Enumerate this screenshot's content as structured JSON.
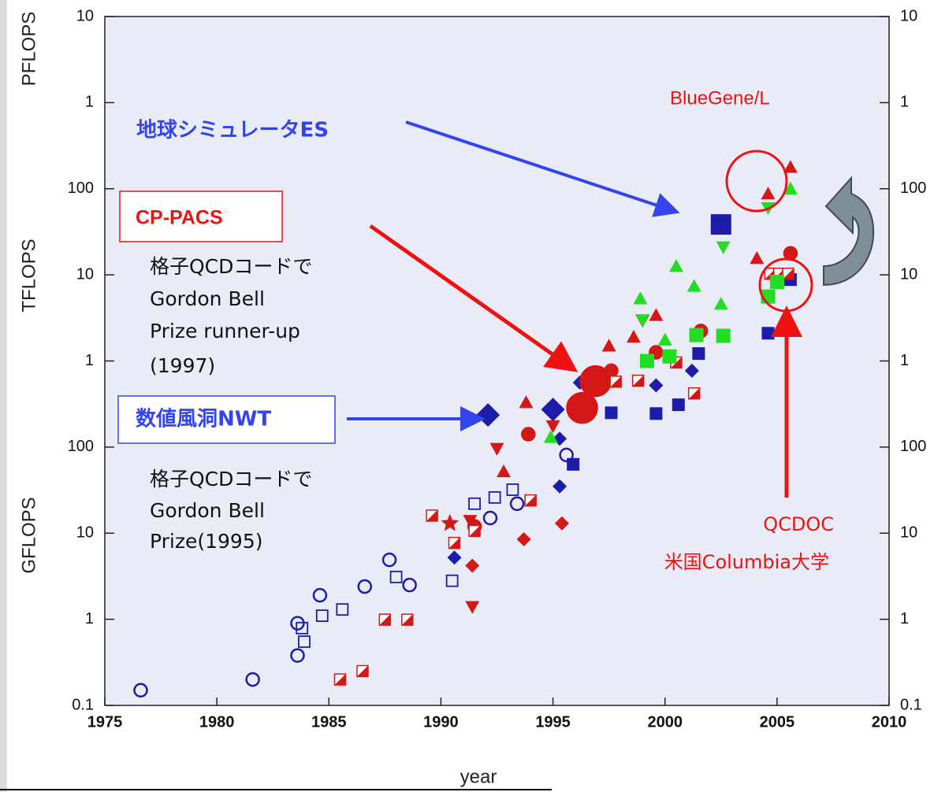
{
  "chart_data": {
    "type": "scatter",
    "log_y": true,
    "mirror_y_labels": true,
    "xlabel": "year",
    "y_unit_labels": [
      "PFLOPS",
      "TFLOPS",
      "GFLOPS"
    ],
    "xlim": [
      1975,
      2010
    ],
    "xticks": [
      1975,
      1980,
      1985,
      1990,
      1995,
      2000,
      2005,
      2010
    ],
    "ylim": [
      0.1,
      10000000
    ],
    "yticks": [
      0.1,
      1,
      10,
      100,
      {
        "value": 1000,
        "label": "1"
      },
      {
        "value": 10000,
        "label": "10"
      },
      {
        "value": 100000,
        "label": "100"
      },
      {
        "value": 1000000,
        "label": "1"
      },
      {
        "value": 10000000,
        "label": "10"
      }
    ],
    "annotations": [
      "地球シミュレータES",
      "BlueGene/L",
      "CP-PACS",
      [
        "格子QCDコードで",
        "Gordon Bell",
        "Prize runner-up",
        "(1997)"
      ],
      "数値風洞NWT",
      [
        "格子QCDコードで",
        "Gordon Bell",
        "Prize(1995)"
      ],
      [
        "QCDOC",
        "米国Columbia大学"
      ]
    ],
    "series": [
      {
        "color": "#1c1ca8",
        "marker": "circle",
        "filled": false,
        "size": 8,
        "x": [
          1976.6,
          1981.6,
          1983.6,
          1983.6,
          1984.6,
          1986.6,
          1987.7,
          1988.6,
          1992.2,
          1993.4,
          1995.6
        ],
        "values": [
          0.15,
          0.2,
          0.38,
          0.9,
          1.9,
          2.4,
          4.9,
          2.5,
          15,
          22,
          81
        ]
      },
      {
        "color": "#1c1ca8",
        "marker": "square",
        "filled": false,
        "size": 7,
        "x": [
          1983.8,
          1983.9,
          1984.7,
          1985.6,
          1988.0,
          1990.5,
          1991.5,
          1992.4,
          1993.2
        ],
        "values": [
          0.79,
          0.55,
          1.1,
          1.3,
          3.1,
          2.8,
          22,
          26,
          32
        ]
      },
      {
        "color": "#1c1ca8",
        "marker": "diamond",
        "filled": true,
        "size": 9,
        "x": [
          1990.6,
          1995.3,
          1995.3,
          1996.2,
          1999.6,
          2001.2
        ],
        "values": [
          5.2,
          35,
          125,
          560,
          520,
          770
        ]
      },
      {
        "color": "#1c1ca8",
        "marker": "diamond",
        "filled": true,
        "size": 15,
        "x": [
          1992.1,
          1995.0
        ],
        "values": [
          236,
          273
        ]
      },
      {
        "color": "#1c1ca8",
        "marker": "square",
        "filled": true,
        "size": 8,
        "x": [
          1995.9,
          1997.6,
          1999.6,
          2000.6,
          2001.5,
          2004.6,
          2005.6
        ],
        "values": [
          63,
          250,
          245,
          310,
          1220,
          2100,
          8800
        ]
      },
      {
        "color": "#1c1ca8",
        "marker": "square",
        "filled": true,
        "size": 13,
        "x": [
          2002.5
        ],
        "values": [
          38500
        ]
      },
      {
        "color": "#d41818",
        "marker": "circle",
        "filled": true,
        "size": 19,
        "x": [
          1996.3,
          1996.9
        ],
        "values": [
          285,
          583
        ]
      },
      {
        "color": "#d41818",
        "marker": "circle",
        "filled": true,
        "size": 8,
        "x": [
          1991.5,
          1993.9,
          1997.6,
          1999.6,
          2001.6,
          2005.6
        ],
        "values": [
          12,
          141,
          770,
          1260,
          2230,
          17800
        ]
      },
      {
        "color": "#d41818",
        "marker": "tri_up",
        "filled": true,
        "size": 9,
        "x": [
          1992.8,
          1993.8,
          1997.5,
          1998.6,
          1999.6,
          2004.1,
          2004.6,
          2005.6
        ],
        "values": [
          52,
          330,
          1500,
          1900,
          3400,
          15600,
          87500,
          178000
        ]
      },
      {
        "color": "#d41818",
        "marker": "tri_down",
        "filled": true,
        "size": 9,
        "x": [
          1991.4,
          1991.3,
          1992.5,
          1995.0,
          1999.0
        ],
        "values": [
          1.4,
          14,
          96,
          176,
          2950
        ]
      },
      {
        "color": "#d41818",
        "marker": "diamond",
        "filled": true,
        "size": 9,
        "x": [
          1991.4,
          1993.7,
          1995.4
        ],
        "values": [
          4.2,
          8.5,
          13
        ]
      },
      {
        "color": "#d41818",
        "marker": "star",
        "filled": true,
        "size": 12,
        "x": [
          1990.4
        ],
        "values": [
          13
        ]
      },
      {
        "color": "#d41818",
        "marker": "half_square",
        "filled": true,
        "size": 7,
        "x": [
          1985.5,
          1986.5,
          1987.5,
          1988.5,
          1989.6,
          1990.6,
          1991.5,
          1994.0,
          1997.8,
          1998.8,
          2000.5,
          2001.3,
          2004.7,
          2005.1,
          2005.5
        ],
        "values": [
          0.2,
          0.25,
          0.99,
          0.99,
          16,
          7.7,
          10.6,
          24,
          575,
          590,
          960,
          420,
          10300,
          10300,
          10300
        ]
      },
      {
        "color": "#22dd22",
        "marker": "tri_up",
        "filled": true,
        "size": 9,
        "x": [
          1994.9,
          1998.9,
          2000.0,
          2000.5,
          2001.3,
          2002.5,
          2005.6
        ],
        "values": [
          130,
          5300,
          1760,
          12600,
          7400,
          4600,
          100000
        ]
      },
      {
        "color": "#22dd22",
        "marker": "tri_down",
        "filled": true,
        "size": 9,
        "x": [
          1999.0,
          2002.6,
          2004.6
        ],
        "values": [
          3000,
          21000,
          60000
        ]
      },
      {
        "color": "#22dd22",
        "marker": "square",
        "filled": true,
        "size": 9,
        "x": [
          1999.2,
          2000.2,
          2001.4,
          2002.6,
          2004.6,
          2005.0
        ],
        "values": [
          1000,
          1130,
          2000,
          1960,
          5600,
          8300
        ]
      }
    ]
  }
}
